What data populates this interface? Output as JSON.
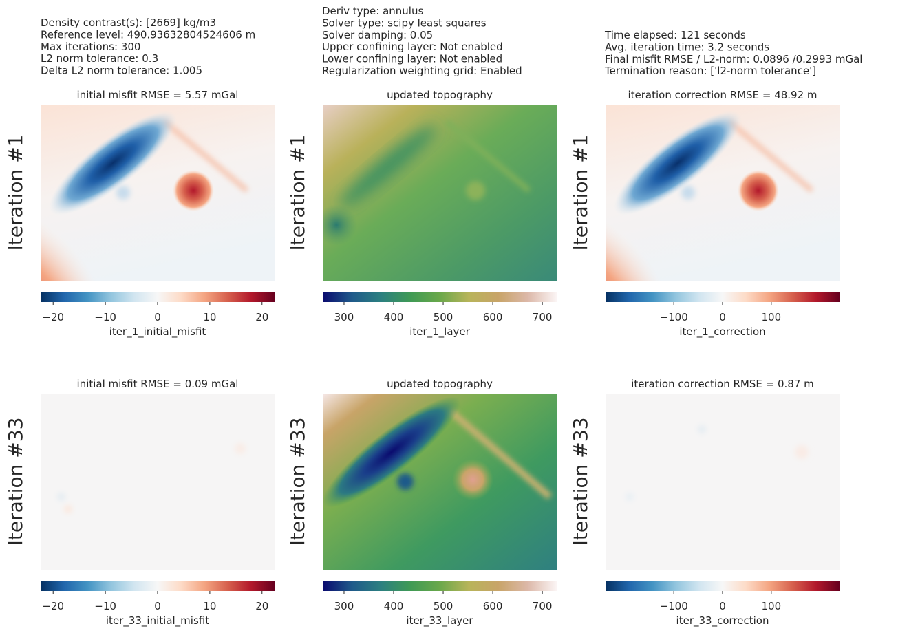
{
  "header": {
    "left": [
      "Density contrast(s): [2669] kg/m3",
      "Reference level: 490.93632804524606 m",
      "Max iterations: 300",
      "L2 norm tolerance: 0.3",
      "Delta L2 norm tolerance: 1.005"
    ],
    "middle": [
      "Deriv type: annulus",
      "Solver type: scipy least squares",
      "Solver damping: 0.05",
      "Upper confining layer: Not enabled",
      "Lower confining layer: Not enabled",
      "Regularization weighting grid: Enabled"
    ],
    "right": [
      "Time elapsed: 121 seconds",
      "Avg. iteration time: 3.2 seconds",
      "Final misfit RMSE / L2-norm: 0.0896 /0.2993 mGal",
      "Termination reason: ['l2-norm tolerance']"
    ]
  },
  "panels": [
    {
      "title": "initial misfit RMSE = 5.57 mGal",
      "ylabel": "Iteration #1",
      "colorbar": {
        "label": "iter_1_initial_misfit",
        "clim": [
          -22.4,
          22.4
        ],
        "ticks": [
          {
            "value": -20,
            "label": "−20"
          },
          {
            "value": -10,
            "label": "−10"
          },
          0,
          10,
          20
        ],
        "colors": [
          "#053061",
          "#2166ac",
          "#4393c3",
          "#92c5de",
          "#d1e5f0",
          "#f7f7f7",
          "#fddbc7",
          "#f4a582",
          "#d6604d",
          "#b2182b",
          "#67001f"
        ]
      }
    },
    {
      "title": "updated topography",
      "ylabel": "Iteration #1",
      "colorbar": {
        "label": "iter_1_layer",
        "clim": [
          257,
          729
        ],
        "ticks": [
          300,
          400,
          500,
          600,
          700
        ],
        "colors": [
          "#0a0a6e",
          "#1f5a8a",
          "#2c8080",
          "#3f9a55",
          "#6aa84a",
          "#b8b45a",
          "#c8a468",
          "#dcb8a8",
          "#fbf5f5"
        ]
      }
    },
    {
      "title": "iteration correction RMSE = 48.92 m",
      "ylabel": "Iteration #1",
      "colorbar": {
        "label": "iter_1_correction",
        "clim": [
          -240,
          240
        ],
        "ticks": [
          {
            "value": -100,
            "label": "−100"
          },
          0,
          100
        ],
        "colors": [
          "#053061",
          "#2166ac",
          "#4393c3",
          "#92c5de",
          "#d1e5f0",
          "#f7f7f7",
          "#fddbc7",
          "#f4a582",
          "#d6604d",
          "#b2182b",
          "#67001f"
        ]
      }
    },
    {
      "title": "initial misfit RMSE = 0.09 mGal",
      "ylabel": "Iteration #33",
      "colorbar": {
        "label": "iter_33_initial_misfit",
        "clim": [
          -22.4,
          22.4
        ],
        "ticks": [
          {
            "value": -20,
            "label": "−20"
          },
          {
            "value": -10,
            "label": "−10"
          },
          0,
          10,
          20
        ],
        "colors": [
          "#053061",
          "#2166ac",
          "#4393c3",
          "#92c5de",
          "#d1e5f0",
          "#f7f7f7",
          "#fddbc7",
          "#f4a582",
          "#d6604d",
          "#b2182b",
          "#67001f"
        ]
      }
    },
    {
      "title": "updated topography",
      "ylabel": "Iteration #33",
      "colorbar": {
        "label": "iter_33_layer",
        "clim": [
          257,
          729
        ],
        "ticks": [
          300,
          400,
          500,
          600,
          700
        ],
        "colors": [
          "#0a0a6e",
          "#1f5a8a",
          "#2c8080",
          "#3f9a55",
          "#6aa84a",
          "#b8b45a",
          "#c8a468",
          "#dcb8a8",
          "#fbf5f5"
        ]
      }
    },
    {
      "title": "iteration correction RMSE = 0.87 m",
      "ylabel": "Iteration #33",
      "colorbar": {
        "label": "iter_33_correction",
        "clim": [
          -240,
          240
        ],
        "ticks": [
          {
            "value": -100,
            "label": "−100"
          },
          0,
          100
        ],
        "colors": [
          "#053061",
          "#2166ac",
          "#4393c3",
          "#92c5de",
          "#d1e5f0",
          "#f7f7f7",
          "#fddbc7",
          "#f4a582",
          "#d6604d",
          "#b2182b",
          "#67001f"
        ]
      }
    }
  ]
}
